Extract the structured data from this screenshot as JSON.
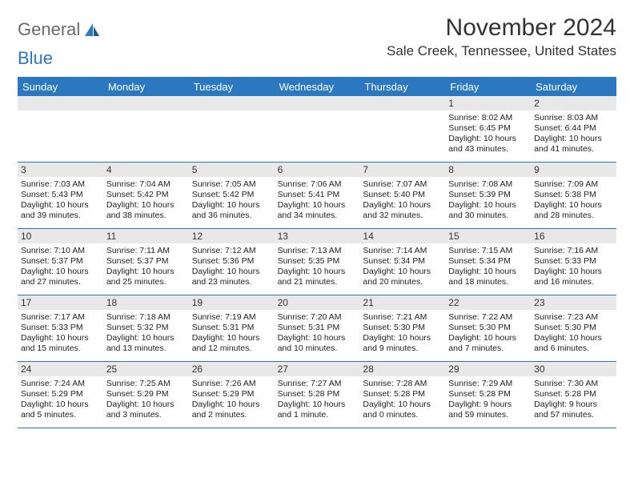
{
  "brand": {
    "word1": "General",
    "word2": "Blue"
  },
  "title": "November 2024",
  "location": "Sale Creek, Tennessee, United States",
  "colors": {
    "header_bg": "#2b77c0",
    "daynum_bg": "#e8e8e8",
    "text": "#333333",
    "logo_gray": "#6b6b6b"
  },
  "days_of_week": [
    "Sunday",
    "Monday",
    "Tuesday",
    "Wednesday",
    "Thursday",
    "Friday",
    "Saturday"
  ],
  "weeks": [
    [
      {
        "n": "",
        "empty": true
      },
      {
        "n": "",
        "empty": true
      },
      {
        "n": "",
        "empty": true
      },
      {
        "n": "",
        "empty": true
      },
      {
        "n": "",
        "empty": true
      },
      {
        "n": "1",
        "sr": "Sunrise: 8:02 AM",
        "ss": "Sunset: 6:45 PM",
        "dl1": "Daylight: 10 hours",
        "dl2": "and 43 minutes."
      },
      {
        "n": "2",
        "sr": "Sunrise: 8:03 AM",
        "ss": "Sunset: 6:44 PM",
        "dl1": "Daylight: 10 hours",
        "dl2": "and 41 minutes."
      }
    ],
    [
      {
        "n": "3",
        "sr": "Sunrise: 7:03 AM",
        "ss": "Sunset: 5:43 PM",
        "dl1": "Daylight: 10 hours",
        "dl2": "and 39 minutes."
      },
      {
        "n": "4",
        "sr": "Sunrise: 7:04 AM",
        "ss": "Sunset: 5:42 PM",
        "dl1": "Daylight: 10 hours",
        "dl2": "and 38 minutes."
      },
      {
        "n": "5",
        "sr": "Sunrise: 7:05 AM",
        "ss": "Sunset: 5:42 PM",
        "dl1": "Daylight: 10 hours",
        "dl2": "and 36 minutes."
      },
      {
        "n": "6",
        "sr": "Sunrise: 7:06 AM",
        "ss": "Sunset: 5:41 PM",
        "dl1": "Daylight: 10 hours",
        "dl2": "and 34 minutes."
      },
      {
        "n": "7",
        "sr": "Sunrise: 7:07 AM",
        "ss": "Sunset: 5:40 PM",
        "dl1": "Daylight: 10 hours",
        "dl2": "and 32 minutes."
      },
      {
        "n": "8",
        "sr": "Sunrise: 7:08 AM",
        "ss": "Sunset: 5:39 PM",
        "dl1": "Daylight: 10 hours",
        "dl2": "and 30 minutes."
      },
      {
        "n": "9",
        "sr": "Sunrise: 7:09 AM",
        "ss": "Sunset: 5:38 PM",
        "dl1": "Daylight: 10 hours",
        "dl2": "and 28 minutes."
      }
    ],
    [
      {
        "n": "10",
        "sr": "Sunrise: 7:10 AM",
        "ss": "Sunset: 5:37 PM",
        "dl1": "Daylight: 10 hours",
        "dl2": "and 27 minutes."
      },
      {
        "n": "11",
        "sr": "Sunrise: 7:11 AM",
        "ss": "Sunset: 5:37 PM",
        "dl1": "Daylight: 10 hours",
        "dl2": "and 25 minutes."
      },
      {
        "n": "12",
        "sr": "Sunrise: 7:12 AM",
        "ss": "Sunset: 5:36 PM",
        "dl1": "Daylight: 10 hours",
        "dl2": "and 23 minutes."
      },
      {
        "n": "13",
        "sr": "Sunrise: 7:13 AM",
        "ss": "Sunset: 5:35 PM",
        "dl1": "Daylight: 10 hours",
        "dl2": "and 21 minutes."
      },
      {
        "n": "14",
        "sr": "Sunrise: 7:14 AM",
        "ss": "Sunset: 5:34 PM",
        "dl1": "Daylight: 10 hours",
        "dl2": "and 20 minutes."
      },
      {
        "n": "15",
        "sr": "Sunrise: 7:15 AM",
        "ss": "Sunset: 5:34 PM",
        "dl1": "Daylight: 10 hours",
        "dl2": "and 18 minutes."
      },
      {
        "n": "16",
        "sr": "Sunrise: 7:16 AM",
        "ss": "Sunset: 5:33 PM",
        "dl1": "Daylight: 10 hours",
        "dl2": "and 16 minutes."
      }
    ],
    [
      {
        "n": "17",
        "sr": "Sunrise: 7:17 AM",
        "ss": "Sunset: 5:33 PM",
        "dl1": "Daylight: 10 hours",
        "dl2": "and 15 minutes."
      },
      {
        "n": "18",
        "sr": "Sunrise: 7:18 AM",
        "ss": "Sunset: 5:32 PM",
        "dl1": "Daylight: 10 hours",
        "dl2": "and 13 minutes."
      },
      {
        "n": "19",
        "sr": "Sunrise: 7:19 AM",
        "ss": "Sunset: 5:31 PM",
        "dl1": "Daylight: 10 hours",
        "dl2": "and 12 minutes."
      },
      {
        "n": "20",
        "sr": "Sunrise: 7:20 AM",
        "ss": "Sunset: 5:31 PM",
        "dl1": "Daylight: 10 hours",
        "dl2": "and 10 minutes."
      },
      {
        "n": "21",
        "sr": "Sunrise: 7:21 AM",
        "ss": "Sunset: 5:30 PM",
        "dl1": "Daylight: 10 hours",
        "dl2": "and 9 minutes."
      },
      {
        "n": "22",
        "sr": "Sunrise: 7:22 AM",
        "ss": "Sunset: 5:30 PM",
        "dl1": "Daylight: 10 hours",
        "dl2": "and 7 minutes."
      },
      {
        "n": "23",
        "sr": "Sunrise: 7:23 AM",
        "ss": "Sunset: 5:30 PM",
        "dl1": "Daylight: 10 hours",
        "dl2": "and 6 minutes."
      }
    ],
    [
      {
        "n": "24",
        "sr": "Sunrise: 7:24 AM",
        "ss": "Sunset: 5:29 PM",
        "dl1": "Daylight: 10 hours",
        "dl2": "and 5 minutes."
      },
      {
        "n": "25",
        "sr": "Sunrise: 7:25 AM",
        "ss": "Sunset: 5:29 PM",
        "dl1": "Daylight: 10 hours",
        "dl2": "and 3 minutes."
      },
      {
        "n": "26",
        "sr": "Sunrise: 7:26 AM",
        "ss": "Sunset: 5:29 PM",
        "dl1": "Daylight: 10 hours",
        "dl2": "and 2 minutes."
      },
      {
        "n": "27",
        "sr": "Sunrise: 7:27 AM",
        "ss": "Sunset: 5:28 PM",
        "dl1": "Daylight: 10 hours",
        "dl2": "and 1 minute."
      },
      {
        "n": "28",
        "sr": "Sunrise: 7:28 AM",
        "ss": "Sunset: 5:28 PM",
        "dl1": "Daylight: 10 hours",
        "dl2": "and 0 minutes."
      },
      {
        "n": "29",
        "sr": "Sunrise: 7:29 AM",
        "ss": "Sunset: 5:28 PM",
        "dl1": "Daylight: 9 hours",
        "dl2": "and 59 minutes."
      },
      {
        "n": "30",
        "sr": "Sunrise: 7:30 AM",
        "ss": "Sunset: 5:28 PM",
        "dl1": "Daylight: 9 hours",
        "dl2": "and 57 minutes."
      }
    ]
  ]
}
